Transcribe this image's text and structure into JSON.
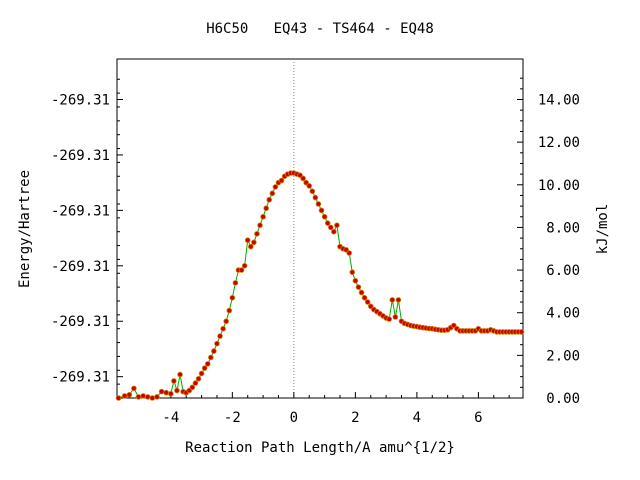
{
  "chart_data": {
    "type": "scatter",
    "title": "H6C50   EQ43 - TS464 - EQ48",
    "xlabel": "Reaction Path Length/A amu^{1/2}",
    "ylabel_left": "Energy/Hartree",
    "ylabel_right": "kJ/mol",
    "xlim": [
      -5.75,
      7.45
    ],
    "ylim_kj": [
      0.0,
      15.9
    ],
    "x_ticks": [
      -4,
      -2,
      0,
      2,
      4,
      6
    ],
    "x_tick_labels": [
      "-4",
      "-2",
      "0",
      "2",
      "4",
      "6"
    ],
    "y_right_ticks": [
      0,
      2,
      4,
      6,
      8,
      10,
      12,
      14
    ],
    "y_right_tick_labels": [
      "0.00",
      "2.00",
      "4.00",
      "6.00",
      "8.00",
      "10.00",
      "12.00",
      "14.00"
    ],
    "y_left_ticks_kj": [
      1.0,
      3.6,
      6.2,
      8.8,
      11.4,
      14.0
    ],
    "y_left_tick_labels": [
      "-269.31",
      "-269.31",
      "-269.31",
      "-269.31",
      "-269.31",
      "-269.31"
    ],
    "ts_marker_x": 0,
    "grid": false,
    "line_color": "#00aa00",
    "marker_color": "#cc0000",
    "marker_edge_color": "#cc8800",
    "points": [
      [
        -5.7,
        0
      ],
      [
        -5.5,
        0.1
      ],
      [
        -5.35,
        0.15
      ],
      [
        -5.2,
        0.45
      ],
      [
        -5.05,
        0.05
      ],
      [
        -4.9,
        0.1
      ],
      [
        -4.75,
        0.05
      ],
      [
        -4.6,
        0.0
      ],
      [
        -4.45,
        0.05
      ],
      [
        -4.3,
        0.3
      ],
      [
        -4.15,
        0.25
      ],
      [
        -4.0,
        0.2
      ],
      [
        -3.9,
        0.8
      ],
      [
        -3.8,
        0.35
      ],
      [
        -3.7,
        1.1
      ],
      [
        -3.6,
        0.3
      ],
      [
        -3.5,
        0.25
      ],
      [
        -3.4,
        0.35
      ],
      [
        -3.3,
        0.5
      ],
      [
        -3.2,
        0.7
      ],
      [
        -3.1,
        0.9
      ],
      [
        -3.0,
        1.15
      ],
      [
        -2.9,
        1.4
      ],
      [
        -2.8,
        1.6
      ],
      [
        -2.7,
        1.9
      ],
      [
        -2.6,
        2.2
      ],
      [
        -2.5,
        2.55
      ],
      [
        -2.4,
        2.9
      ],
      [
        -2.3,
        3.25
      ],
      [
        -2.2,
        3.6
      ],
      [
        -2.1,
        4.1
      ],
      [
        -2.0,
        4.7
      ],
      [
        -1.9,
        5.4
      ],
      [
        -1.8,
        6.0
      ],
      [
        -1.7,
        6.0
      ],
      [
        -1.6,
        6.2
      ],
      [
        -1.5,
        7.4
      ],
      [
        -1.4,
        7.1
      ],
      [
        -1.3,
        7.3
      ],
      [
        -1.2,
        7.7
      ],
      [
        -1.1,
        8.1
      ],
      [
        -1.0,
        8.5
      ],
      [
        -0.9,
        8.9
      ],
      [
        -0.8,
        9.3
      ],
      [
        -0.7,
        9.6
      ],
      [
        -0.6,
        9.9
      ],
      [
        -0.5,
        10.1
      ],
      [
        -0.4,
        10.2
      ],
      [
        -0.3,
        10.4
      ],
      [
        -0.2,
        10.5
      ],
      [
        -0.1,
        10.55
      ],
      [
        0.0,
        10.55
      ],
      [
        0.1,
        10.5
      ],
      [
        0.2,
        10.45
      ],
      [
        0.3,
        10.3
      ],
      [
        0.4,
        10.1
      ],
      [
        0.5,
        9.95
      ],
      [
        0.6,
        9.7
      ],
      [
        0.7,
        9.4
      ],
      [
        0.8,
        9.1
      ],
      [
        0.9,
        8.8
      ],
      [
        1.0,
        8.5
      ],
      [
        1.1,
        8.2
      ],
      [
        1.2,
        8.0
      ],
      [
        1.3,
        7.8
      ],
      [
        1.4,
        8.1
      ],
      [
        1.5,
        7.1
      ],
      [
        1.6,
        7.0
      ],
      [
        1.7,
        6.95
      ],
      [
        1.8,
        6.8
      ],
      [
        1.9,
        5.9
      ],
      [
        2.0,
        5.5
      ],
      [
        2.1,
        5.2
      ],
      [
        2.2,
        4.95
      ],
      [
        2.3,
        4.7
      ],
      [
        2.4,
        4.5
      ],
      [
        2.5,
        4.3
      ],
      [
        2.6,
        4.15
      ],
      [
        2.7,
        4.05
      ],
      [
        2.8,
        3.95
      ],
      [
        2.9,
        3.85
      ],
      [
        3.0,
        3.75
      ],
      [
        3.1,
        3.7
      ],
      [
        3.2,
        4.6
      ],
      [
        3.3,
        3.8
      ],
      [
        3.4,
        4.6
      ],
      [
        3.5,
        3.6
      ],
      [
        3.6,
        3.5
      ],
      [
        3.7,
        3.45
      ],
      [
        3.8,
        3.4
      ],
      [
        3.9,
        3.37
      ],
      [
        4.0,
        3.35
      ],
      [
        4.1,
        3.32
      ],
      [
        4.2,
        3.3
      ],
      [
        4.3,
        3.28
      ],
      [
        4.4,
        3.26
      ],
      [
        4.5,
        3.25
      ],
      [
        4.6,
        3.22
      ],
      [
        4.7,
        3.2
      ],
      [
        4.8,
        3.18
      ],
      [
        4.9,
        3.18
      ],
      [
        5.0,
        3.2
      ],
      [
        5.1,
        3.3
      ],
      [
        5.2,
        3.4
      ],
      [
        5.3,
        3.25
      ],
      [
        5.4,
        3.15
      ],
      [
        5.5,
        3.15
      ],
      [
        5.6,
        3.15
      ],
      [
        5.7,
        3.15
      ],
      [
        5.8,
        3.15
      ],
      [
        5.9,
        3.15
      ],
      [
        6.0,
        3.25
      ],
      [
        6.1,
        3.15
      ],
      [
        6.2,
        3.15
      ],
      [
        6.3,
        3.15
      ],
      [
        6.4,
        3.2
      ],
      [
        6.5,
        3.15
      ],
      [
        6.6,
        3.1
      ],
      [
        6.7,
        3.1
      ],
      [
        6.8,
        3.1
      ],
      [
        6.9,
        3.1
      ],
      [
        7.0,
        3.1
      ],
      [
        7.1,
        3.1
      ],
      [
        7.2,
        3.1
      ],
      [
        7.3,
        3.1
      ],
      [
        7.4,
        3.1
      ]
    ]
  }
}
